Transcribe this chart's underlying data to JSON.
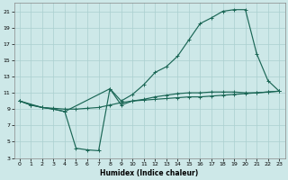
{
  "xlabel": "Humidex (Indice chaleur)",
  "bg_color": "#cde8e8",
  "grid_color": "#aacfcf",
  "line_color": "#1a6655",
  "xlim": [
    -0.5,
    23.5
  ],
  "ylim": [
    3,
    22
  ],
  "xticks": [
    0,
    1,
    2,
    3,
    4,
    5,
    6,
    7,
    8,
    9,
    10,
    11,
    12,
    13,
    14,
    15,
    16,
    17,
    18,
    19,
    20,
    21,
    22,
    23
  ],
  "yticks": [
    3,
    5,
    7,
    9,
    11,
    13,
    15,
    17,
    19,
    21
  ],
  "line_flat_x": [
    0,
    1,
    2,
    3,
    4,
    5,
    6,
    7,
    8,
    9,
    10,
    11,
    12,
    13,
    14,
    15,
    16,
    17,
    18,
    19,
    20,
    21,
    22,
    23
  ],
  "line_flat_y": [
    10,
    9.5,
    9.2,
    9.1,
    9.0,
    9.0,
    9.1,
    9.2,
    9.5,
    9.8,
    10.0,
    10.1,
    10.2,
    10.3,
    10.4,
    10.5,
    10.5,
    10.6,
    10.7,
    10.8,
    10.9,
    11.0,
    11.1,
    11.2
  ],
  "line_dip_x": [
    0,
    1,
    2,
    3,
    4,
    5,
    6,
    7,
    8,
    9,
    10,
    11,
    12,
    13,
    14,
    15,
    16,
    17,
    18,
    19,
    20,
    21,
    22,
    23
  ],
  "line_dip_y": [
    10,
    9.5,
    9.2,
    9.0,
    8.7,
    4.2,
    4.0,
    3.9,
    11.5,
    9.5,
    10.0,
    10.2,
    10.5,
    10.7,
    10.9,
    11.0,
    11.0,
    11.1,
    11.1,
    11.1,
    11.0,
    11.0,
    11.1,
    11.2
  ],
  "line_top_x": [
    0,
    2,
    3,
    4,
    8,
    9,
    10,
    11,
    12,
    13,
    14,
    15,
    16,
    17,
    18,
    19,
    20,
    21,
    22,
    23
  ],
  "line_top_y": [
    10,
    9.2,
    9.0,
    8.7,
    11.5,
    10.0,
    10.8,
    12.0,
    13.5,
    14.2,
    15.5,
    17.5,
    19.5,
    20.2,
    21.0,
    21.2,
    21.2,
    15.8,
    12.5,
    11.2
  ]
}
